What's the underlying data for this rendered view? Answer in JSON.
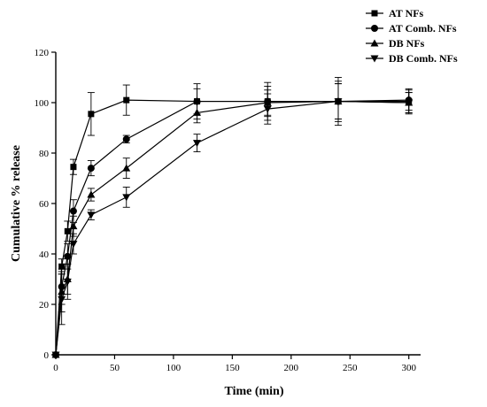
{
  "chart_data": {
    "type": "line",
    "title": "",
    "xlabel": "Time (min)",
    "ylabel": "Cumulative % release",
    "xlim": [
      0,
      310
    ],
    "ylim": [
      0,
      120
    ],
    "xticks": [
      0,
      50,
      100,
      150,
      200,
      250,
      300
    ],
    "yticks": [
      0,
      20,
      40,
      60,
      80,
      100,
      120
    ],
    "grid": false,
    "legend": "top-right",
    "series": [
      {
        "name": "AT NFs",
        "marker": "square",
        "x": [
          0,
          5,
          10,
          15,
          30,
          60,
          120,
          180,
          240,
          300
        ],
        "y": [
          0,
          35,
          49,
          74.5,
          95.5,
          101,
          100.5,
          100.5,
          100.5,
          100.5
        ],
        "err": [
          0,
          3,
          4,
          3,
          8.5,
          6,
          7,
          7.5,
          9.5,
          5
        ]
      },
      {
        "name": "AT Comb. NFs",
        "marker": "circle",
        "x": [
          0,
          5,
          10,
          15,
          30,
          60,
          120,
          180,
          240,
          300
        ],
        "y": [
          0,
          27,
          39,
          57,
          74,
          85.5,
          100.5,
          100.5,
          100.5,
          101
        ],
        "err": [
          0,
          7,
          5,
          4.5,
          3,
          1.5,
          5,
          6,
          8,
          4
        ]
      },
      {
        "name": "DB NFs",
        "marker": "triangle-up",
        "x": [
          0,
          5,
          10,
          15,
          30,
          60,
          120,
          180,
          240,
          300
        ],
        "y": [
          0,
          25,
          30,
          51,
          63.5,
          74,
          96,
          100,
          100.5,
          100
        ],
        "err": [
          0,
          8,
          6,
          4,
          2.5,
          4,
          4,
          5,
          7,
          4
        ]
      },
      {
        "name": "DB Comb. NFs",
        "marker": "triangle-down",
        "x": [
          0,
          5,
          10,
          15,
          30,
          60,
          120,
          180,
          240,
          300
        ],
        "y": [
          0,
          22,
          29,
          44,
          55.5,
          62.5,
          84,
          97.5,
          100.5,
          100
        ],
        "err": [
          0,
          10,
          7,
          4,
          2,
          4,
          3.5,
          6,
          7,
          4
        ]
      }
    ]
  }
}
